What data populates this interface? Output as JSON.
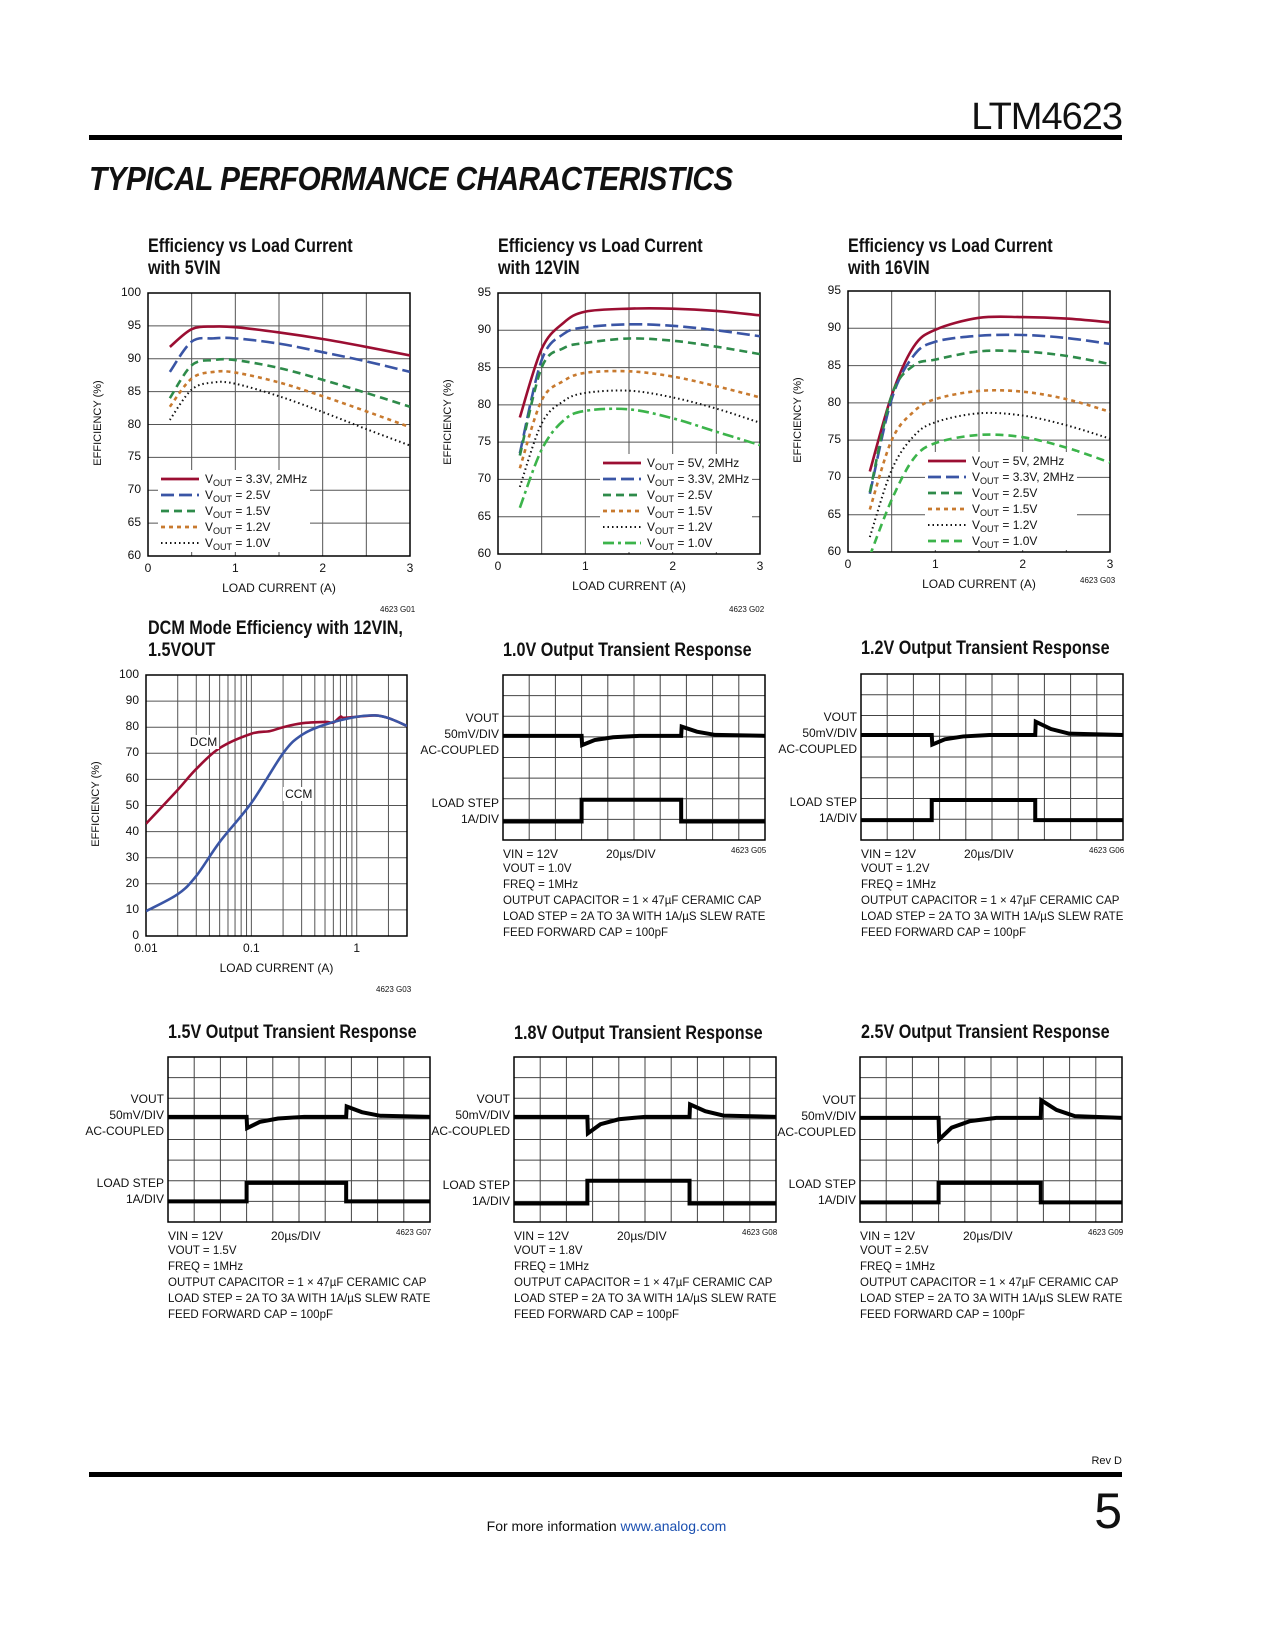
{
  "header": {
    "part_number": "LTM4623",
    "section_title": "TYPICAL PERFORMANCE CHARACTERISTICS"
  },
  "footer": {
    "revision": "Rev D",
    "page_number": "5",
    "info_text": "For more information ",
    "link_text": "www.analog.com"
  },
  "colors": {
    "red": "#9b0e32",
    "blue": "#3a55a5",
    "green": "#2e8b4a",
    "orange": "#c87a2f",
    "black": "#111111",
    "light_green": "#3cb44b",
    "link": "#1a4fb0"
  },
  "chart_data": [
    {
      "type": "line",
      "id": "4623 G01",
      "title": [
        "Efficiency vs Load Current",
        "with 5VIN"
      ],
      "xlabel": "LOAD CURRENT (A)",
      "ylabel": "EFFICIENCY (%)",
      "xlim": [
        0,
        3
      ],
      "ylim": [
        60,
        100
      ],
      "xscale": "linear",
      "xticks": [
        0,
        1,
        2,
        3
      ],
      "yticks": [
        60,
        65,
        70,
        75,
        80,
        85,
        90,
        95,
        100
      ],
      "grid": true,
      "legend": "bottom-left",
      "x": [
        0.25,
        0.5,
        0.75,
        1,
        1.5,
        2,
        2.5,
        3
      ],
      "series": [
        {
          "name": "VOUT = 3.3V, 2MHz",
          "color": "#9b0e32",
          "style": "solid",
          "values": [
            91.8,
            94.5,
            94.9,
            94.8,
            94.0,
            93.0,
            91.8,
            90.5
          ]
        },
        {
          "name": "VOUT = 2.5V",
          "color": "#3a55a5",
          "style": "long-dash",
          "values": [
            88.0,
            92.6,
            93.1,
            93.1,
            92.3,
            91.0,
            89.6,
            88.0
          ]
        },
        {
          "name": "VOUT = 1.5V",
          "color": "#2e8b4a",
          "style": "dash",
          "values": [
            84.0,
            89.0,
            89.8,
            89.8,
            88.6,
            86.8,
            84.8,
            82.7
          ]
        },
        {
          "name": "VOUT = 1.2V",
          "color": "#c87a2f",
          "style": "short-dash",
          "values": [
            82.7,
            87.0,
            88.0,
            87.9,
            86.4,
            84.3,
            82.0,
            79.6
          ]
        },
        {
          "name": "VOUT = 1.0V",
          "color": "#111111",
          "style": "dotted",
          "values": [
            80.7,
            85.3,
            86.4,
            86.2,
            84.3,
            81.9,
            79.3,
            76.8
          ]
        }
      ]
    },
    {
      "type": "line",
      "id": "4623 G02",
      "title": [
        "Efficiency vs Load Current",
        "with 12VIN"
      ],
      "xlabel": "LOAD CURRENT (A)",
      "ylabel": "EFFICIENCY (%)",
      "xlim": [
        0,
        3
      ],
      "ylim": [
        60,
        95
      ],
      "xscale": "linear",
      "xticks": [
        0,
        1,
        2,
        3
      ],
      "yticks": [
        60,
        65,
        70,
        75,
        80,
        85,
        90,
        95
      ],
      "grid": true,
      "legend": "bottom-right",
      "x": [
        0.25,
        0.5,
        0.75,
        1,
        1.5,
        2,
        2.5,
        3
      ],
      "series": [
        {
          "name": "VOUT = 5V, 2MHz",
          "color": "#9b0e32",
          "style": "solid",
          "values": [
            78.3,
            87.5,
            91.0,
            92.5,
            92.9,
            92.9,
            92.6,
            92.0
          ]
        },
        {
          "name": "VOUT = 3.3V, 2MHz",
          "color": "#3a55a5",
          "style": "long-dash",
          "values": [
            73.5,
            86.0,
            89.5,
            90.4,
            90.8,
            90.6,
            90.0,
            89.2
          ]
        },
        {
          "name": "VOUT = 2.5V",
          "color": "#2e8b4a",
          "style": "dash",
          "values": [
            73.2,
            85.0,
            87.6,
            88.3,
            88.9,
            88.6,
            87.8,
            86.8
          ]
        },
        {
          "name": "VOUT = 1.5V",
          "color": "#c87a2f",
          "style": "short-dash",
          "values": [
            71.5,
            80.6,
            83.2,
            84.3,
            84.5,
            83.8,
            82.5,
            81.0
          ]
        },
        {
          "name": "VOUT = 1.2V",
          "color": "#111111",
          "style": "dotted",
          "values": [
            69.0,
            77.5,
            80.5,
            81.6,
            81.9,
            81.0,
            79.5,
            77.6
          ]
        },
        {
          "name": "VOUT = 1.0V",
          "color": "#3cb44b",
          "style": "dash-dot",
          "values": [
            66.2,
            74.0,
            77.9,
            79.2,
            79.4,
            78.2,
            76.4,
            74.6
          ]
        }
      ]
    },
    {
      "type": "line",
      "id": "4623 G03",
      "title": [
        "Efficiency vs Load Current",
        "with 16VIN"
      ],
      "xlabel": "LOAD CURRENT (A)",
      "ylabel": "EFFICIENCY (%)",
      "xlim": [
        0,
        3
      ],
      "ylim": [
        60,
        95
      ],
      "xscale": "linear",
      "xticks": [
        0,
        1,
        2,
        3
      ],
      "yticks": [
        60,
        65,
        70,
        75,
        80,
        85,
        90,
        95
      ],
      "grid": true,
      "legend": "bottom-right",
      "x": [
        0.25,
        0.5,
        0.75,
        1,
        1.5,
        2,
        2.5,
        3
      ],
      "series": [
        {
          "name": "VOUT = 5V, 2MHz",
          "color": "#9b0e32",
          "style": "solid",
          "values": [
            70.8,
            81.0,
            87.5,
            89.8,
            91.4,
            91.5,
            91.3,
            90.8
          ]
        },
        {
          "name": "VOUT = 3.3V, 2MHz",
          "color": "#3a55a5",
          "style": "long-dash",
          "values": [
            67.8,
            80.5,
            86.3,
            88.2,
            89.0,
            89.1,
            88.7,
            87.9
          ]
        },
        {
          "name": "VOUT = 2.5V",
          "color": "#2e8b4a",
          "style": "dash",
          "values": [
            68.0,
            81.0,
            85.0,
            85.8,
            86.9,
            86.9,
            86.3,
            85.2
          ]
        },
        {
          "name": "VOUT = 1.5V",
          "color": "#c87a2f",
          "style": "short-dash",
          "values": [
            65.7,
            75.0,
            78.8,
            80.5,
            81.6,
            81.5,
            80.5,
            78.8
          ]
        },
        {
          "name": "VOUT = 1.2V",
          "color": "#111111",
          "style": "dotted",
          "values": [
            62.0,
            71.0,
            75.5,
            77.4,
            78.6,
            78.3,
            77.0,
            75.2
          ]
        },
        {
          "name": "VOUT = 1.0V",
          "color": "#3cb44b",
          "style": "dash",
          "values": [
            59.5,
            67.0,
            72.5,
            74.6,
            75.7,
            75.4,
            74.0,
            72.0
          ]
        }
      ]
    },
    {
      "type": "line",
      "id": "4623 G03",
      "title": [
        "DCM Mode Efficiency with 12VIN,",
        "1.5VOUT"
      ],
      "xlabel": "LOAD CURRENT (A)",
      "ylabel": "EFFICIENCY (%)",
      "xlim": [
        0.01,
        3
      ],
      "ylim": [
        0,
        100
      ],
      "xscale": "log",
      "xticks": [
        0.01,
        0.1,
        1
      ],
      "xtick_labels": [
        "0.01",
        "0.1",
        "1"
      ],
      "yticks": [
        0,
        10,
        20,
        30,
        40,
        50,
        60,
        70,
        80,
        90,
        100
      ],
      "grid": true,
      "legend": "none",
      "series": [
        {
          "name": "DCM",
          "color": "#9b0e32",
          "style": "solid",
          "x": [
            0.01,
            0.02,
            0.03,
            0.05,
            0.1,
            0.15,
            0.2,
            0.3,
            0.5,
            0.6,
            0.7,
            0.75,
            1,
            1.5,
            2,
            3
          ],
          "values": [
            43,
            56,
            64,
            72,
            77.5,
            78.5,
            80,
            81.5,
            82,
            81.8,
            84,
            83.6,
            84,
            84.5,
            83.5,
            80.5
          ]
        },
        {
          "name": "CCM",
          "color": "#3a55a5",
          "style": "solid",
          "x": [
            0.01,
            0.02,
            0.03,
            0.05,
            0.1,
            0.2,
            0.3,
            0.5,
            1,
            1.5,
            2,
            3
          ],
          "values": [
            9.5,
            16,
            23,
            36,
            51,
            70,
            77,
            81,
            84,
            84.5,
            83.5,
            80.5
          ]
        }
      ],
      "annotations": [
        {
          "text": "DCM",
          "x": 0.025,
          "y": 74
        },
        {
          "text": "CCM",
          "x": 0.2,
          "y": 54
        }
      ]
    }
  ],
  "scopes": [
    {
      "id": "4623 G05",
      "title": "1.0V Output Transient Response",
      "vout_label": "VOUT",
      "vout_scale": "50mV/DIV",
      "coupling": "AC-COUPLED",
      "load_label": "LOAD STEP",
      "load_scale": "1A/DIV",
      "vin": "VIN = 12V",
      "timebase": "20µs/DIV",
      "vout": "VOUT = 1.0V",
      "freq": "FREQ = 1MHz",
      "cap": "OUTPUT CAPACITOR = 1 × 47µF CERAMIC CAP",
      "step": "LOAD STEP = 2A TO 3A WITH 1A/µS SLEW RATE",
      "ff": "FEED FORWARD CAP = 100pF",
      "divisions": [
        10,
        8
      ],
      "vout_level_div": 2.95,
      "undershoot_div": 3.4,
      "overshoot_div": 2.5,
      "load_low_div": 7.1,
      "load_high_div": 6.05,
      "step_on_div": 3.0,
      "step_off_div": 6.8
    },
    {
      "id": "4623 G06",
      "title": "1.2V Output Transient Response",
      "vout_label": "VOUT",
      "vout_scale": "50mV/DIV",
      "coupling": "AC-COUPLED",
      "load_label": "LOAD STEP",
      "load_scale": "1A/DIV",
      "vin": "VIN = 12V",
      "timebase": "20µs/DIV",
      "vout": "VOUT = 1.2V",
      "freq": "FREQ = 1MHz",
      "cap": "OUTPUT CAPACITOR = 1 × 47µF CERAMIC CAP",
      "step": "LOAD STEP = 2A TO 3A WITH 1A/µS SLEW RATE",
      "ff": "FEED FORWARD CAP = 100pF",
      "divisions": [
        10,
        8
      ],
      "vout_level_div": 2.94,
      "undershoot_div": 3.4,
      "overshoot_div": 2.3,
      "load_low_div": 7.04,
      "load_high_div": 6.07,
      "step_on_div": 2.7,
      "step_off_div": 6.65
    },
    {
      "id": "4623 G07",
      "title": "1.5V Output Transient Response",
      "vout_label": "VOUT",
      "vout_scale": "50mV/DIV",
      "coupling": "AC-COUPLED",
      "load_label": "LOAD STEP",
      "load_scale": "1A/DIV",
      "vin": "VIN = 12V",
      "timebase": "20µs/DIV",
      "vout": "VOUT = 1.5V",
      "freq": "FREQ = 1MHz",
      "cap": "OUTPUT CAPACITOR = 1 × 47µF CERAMIC CAP",
      "step": "LOAD STEP = 2A TO 3A WITH 1A/µS SLEW RATE",
      "ff": "FEED FORWARD CAP = 100pF",
      "divisions": [
        10,
        8
      ],
      "vout_level_div": 2.9,
      "undershoot_div": 3.45,
      "overshoot_div": 2.4,
      "load_low_div": 7.0,
      "load_high_div": 6.1,
      "step_on_div": 3.0,
      "step_off_div": 6.8
    },
    {
      "id": "4623 G08",
      "title": "1.8V Output Transient Response",
      "vout_label": "VOUT",
      "vout_scale": "50mV/DIV",
      "coupling": "AC-COUPLED",
      "load_label": "LOAD STEP",
      "load_scale": "1A/DIV",
      "vin": "VIN = 12V",
      "timebase": "20µs/DIV",
      "vout": "VOUT = 1.8V",
      "freq": "FREQ = 1MHz",
      "cap": "OUTPUT CAPACITOR = 1 × 47µF CERAMIC CAP",
      "step": "LOAD STEP = 2A TO 3A WITH 1A/µS SLEW RATE",
      "ff": "FEED FORWARD CAP = 100pF",
      "divisions": [
        10,
        8
      ],
      "vout_level_div": 2.9,
      "undershoot_div": 3.7,
      "overshoot_div": 2.3,
      "load_low_div": 7.1,
      "load_high_div": 6.0,
      "step_on_div": 2.8,
      "step_off_div": 6.7
    },
    {
      "id": "4623 G09",
      "title": "2.5V Output Transient Response",
      "vout_label": "VOUT",
      "vout_scale": "50mV/DIV",
      "coupling": "AC-COUPLED",
      "load_label": "LOAD STEP",
      "load_scale": "1A/DIV",
      "vin": "VIN = 12V",
      "timebase": "20µs/DIV",
      "vout": "VOUT = 2.5V",
      "freq": "FREQ = 1MHz",
      "cap": "OUTPUT CAPACITOR = 1 × 47µF CERAMIC CAP",
      "step": "LOAD STEP = 2A TO 3A WITH 1A/µS SLEW RATE",
      "ff": "FEED FORWARD CAP = 100pF",
      "divisions": [
        10,
        8
      ],
      "vout_level_div": 2.95,
      "undershoot_div": 4.0,
      "overshoot_div": 2.1,
      "load_low_div": 7.05,
      "load_high_div": 6.1,
      "step_on_div": 3.0,
      "step_off_div": 6.9
    }
  ]
}
